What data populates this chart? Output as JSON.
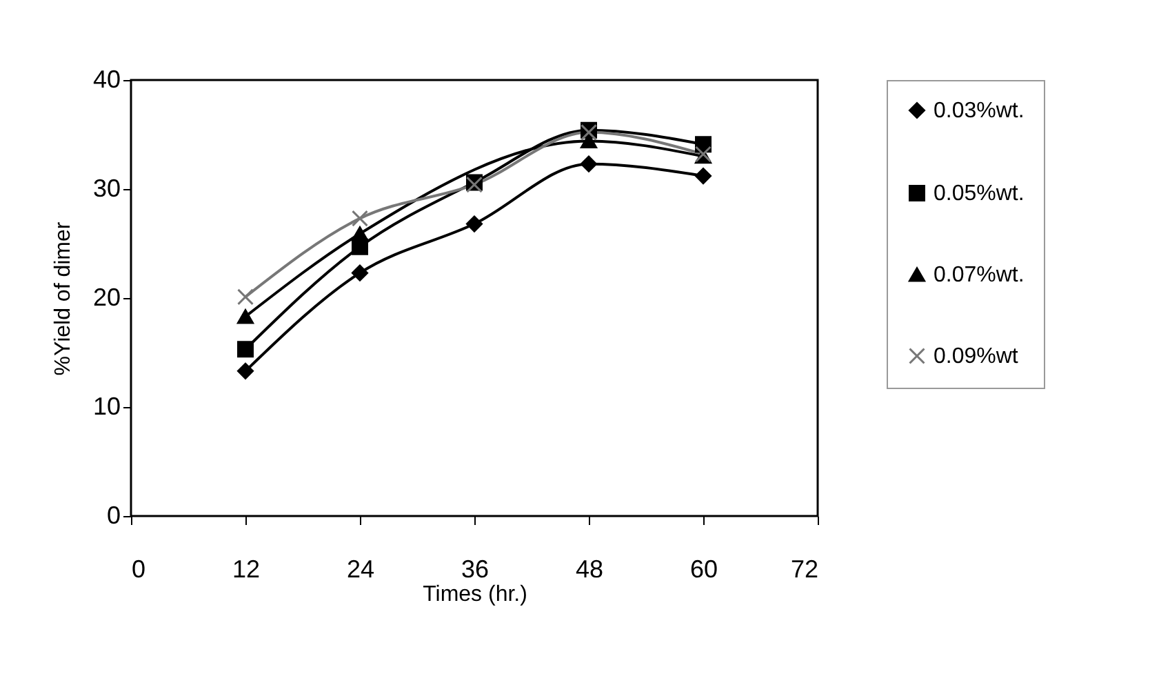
{
  "chart_data": {
    "type": "line",
    "xlabel": "Times (hr.)",
    "ylabel": "%Yield of dimer",
    "x": [
      12,
      24,
      36,
      48,
      60
    ],
    "xlim": [
      0,
      72
    ],
    "xticks": [
      0,
      12,
      24,
      36,
      48,
      60,
      72
    ],
    "ylim": [
      0,
      40
    ],
    "yticks": [
      0,
      10,
      20,
      30,
      40
    ],
    "grid": false,
    "legend": "right",
    "series": [
      {
        "name": "0.03%wt.",
        "color": "#000000",
        "marker": "diamond",
        "values": [
          13.3,
          22.3,
          26.8,
          32.3,
          31.2
        ]
      },
      {
        "name": "0.05%wt.",
        "color": "#000000",
        "marker": "square",
        "values": [
          15.3,
          24.7,
          30.6,
          35.4,
          34.1
        ]
      },
      {
        "name": "0.07%wt.",
        "color": "#000000",
        "marker": "triangle",
        "values": [
          18.3,
          25.9,
          null,
          34.4,
          33.0
        ]
      },
      {
        "name": "0.09%wt",
        "color": "#777777",
        "marker": "cross",
        "values": [
          20.1,
          27.3,
          30.4,
          35.2,
          33.2
        ]
      }
    ]
  }
}
